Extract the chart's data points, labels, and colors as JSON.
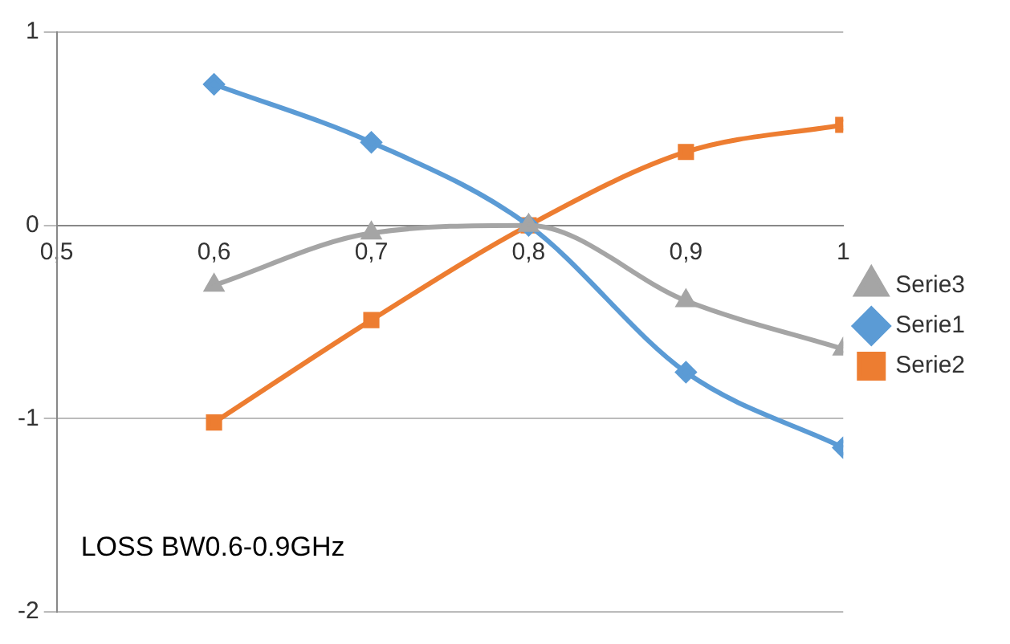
{
  "chart_data": {
    "type": "line",
    "xlim": [
      0.5,
      1
    ],
    "xticks": [
      {
        "value": 0.5,
        "label": "0,5"
      },
      {
        "value": 0.6,
        "label": "0,6"
      },
      {
        "value": 0.7,
        "label": "0,7"
      },
      {
        "value": 0.8,
        "label": "0,8"
      },
      {
        "value": 0.9,
        "label": "0,9"
      },
      1
    ],
    "ylim": [
      -2,
      1
    ],
    "yticks": [
      -2,
      -1,
      0,
      1
    ],
    "grid": "y",
    "legend": "right",
    "line_style": "solid",
    "annotations": [
      "LOSS BW0.6-0.9GHz"
    ],
    "series": [
      {
        "name": "Serie3",
        "color": "#a5a5a5",
        "marker": "triangle",
        "x": [
          0.6,
          0.7,
          0.8,
          0.9,
          1
        ],
        "values": [
          -0.31,
          -0.04,
          0,
          -0.39,
          -0.64
        ]
      },
      {
        "name": "Serie1",
        "color": "#5b9bd5",
        "marker": "diamond",
        "x": [
          0.6,
          0.7,
          0.8,
          0.9,
          1
        ],
        "values": [
          0.73,
          0.43,
          0,
          -0.76,
          -1.15
        ]
      },
      {
        "name": "Serie2",
        "color": "#ed7d31",
        "marker": "square",
        "x": [
          0.6,
          0.7,
          0.8,
          0.9,
          1
        ],
        "values": [
          -1.02,
          -0.49,
          0,
          0.38,
          0.52
        ]
      }
    ]
  }
}
